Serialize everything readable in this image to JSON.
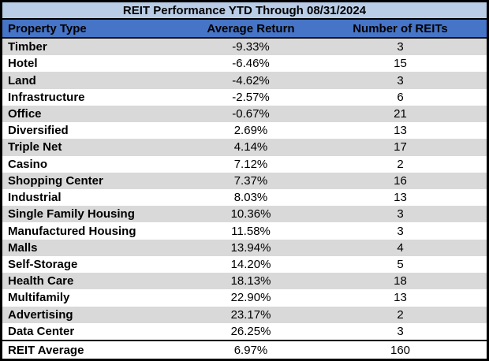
{
  "table": {
    "title": "REIT Performance YTD Through 08/31/2024",
    "columns": {
      "property_type": "Property Type",
      "average_return": "Average Return",
      "number_of_reits": "Number of REITs"
    },
    "rows": [
      {
        "type": "Timber",
        "avg_return": "-9.33%",
        "num_reits": "3"
      },
      {
        "type": "Hotel",
        "avg_return": "-6.46%",
        "num_reits": "15"
      },
      {
        "type": "Land",
        "avg_return": "-4.62%",
        "num_reits": "3"
      },
      {
        "type": "Infrastructure",
        "avg_return": "-2.57%",
        "num_reits": "6"
      },
      {
        "type": "Office",
        "avg_return": "-0.67%",
        "num_reits": "21"
      },
      {
        "type": "Diversified",
        "avg_return": "2.69%",
        "num_reits": "13"
      },
      {
        "type": "Triple Net",
        "avg_return": "4.14%",
        "num_reits": "17"
      },
      {
        "type": "Casino",
        "avg_return": "7.12%",
        "num_reits": "2"
      },
      {
        "type": "Shopping Center",
        "avg_return": "7.37%",
        "num_reits": "16"
      },
      {
        "type": "Industrial",
        "avg_return": "8.03%",
        "num_reits": "13"
      },
      {
        "type": "Single Family Housing",
        "avg_return": "10.36%",
        "num_reits": "3"
      },
      {
        "type": "Manufactured Housing",
        "avg_return": "11.58%",
        "num_reits": "3"
      },
      {
        "type": "Malls",
        "avg_return": "13.94%",
        "num_reits": "4"
      },
      {
        "type": "Self-Storage",
        "avg_return": "14.20%",
        "num_reits": "5"
      },
      {
        "type": "Health Care",
        "avg_return": "18.13%",
        "num_reits": "18"
      },
      {
        "type": "Multifamily",
        "avg_return": "22.90%",
        "num_reits": "13"
      },
      {
        "type": "Advertising",
        "avg_return": "23.17%",
        "num_reits": "2"
      },
      {
        "type": "Data Center",
        "avg_return": "26.25%",
        "num_reits": "3"
      }
    ],
    "footer": {
      "type": "REIT Average",
      "avg_return": "6.97%",
      "num_reits": "160"
    }
  },
  "colors": {
    "title_bg": "#B9CDE6",
    "header_bg": "#4674C6",
    "band_bg": "#D9D9D9",
    "border": "#000000",
    "header_text": "#000000",
    "body_text": "#000000"
  },
  "chart_data": {
    "type": "table",
    "title": "REIT Performance YTD Through 08/31/2024",
    "columns": [
      "Property Type",
      "Average Return",
      "Number of REITs"
    ],
    "rows": [
      [
        "Timber",
        -9.33,
        3
      ],
      [
        "Hotel",
        -6.46,
        15
      ],
      [
        "Land",
        -4.62,
        3
      ],
      [
        "Infrastructure",
        -2.57,
        6
      ],
      [
        "Office",
        -0.67,
        21
      ],
      [
        "Diversified",
        2.69,
        13
      ],
      [
        "Triple Net",
        4.14,
        17
      ],
      [
        "Casino",
        7.12,
        2
      ],
      [
        "Shopping Center",
        7.37,
        16
      ],
      [
        "Industrial",
        8.03,
        13
      ],
      [
        "Single Family Housing",
        10.36,
        3
      ],
      [
        "Manufactured Housing",
        11.58,
        3
      ],
      [
        "Malls",
        13.94,
        4
      ],
      [
        "Self-Storage",
        14.2,
        5
      ],
      [
        "Health Care",
        18.13,
        18
      ],
      [
        "Multifamily",
        22.9,
        13
      ],
      [
        "Advertising",
        23.17,
        2
      ],
      [
        "Data Center",
        26.25,
        3
      ]
    ],
    "footer_row": [
      "REIT Average",
      6.97,
      160
    ],
    "units": {
      "Average Return": "percent",
      "Number of REITs": "count"
    },
    "layout": {
      "banded_rows": true,
      "band_color": "#D9D9D9",
      "gridlines": false
    }
  }
}
